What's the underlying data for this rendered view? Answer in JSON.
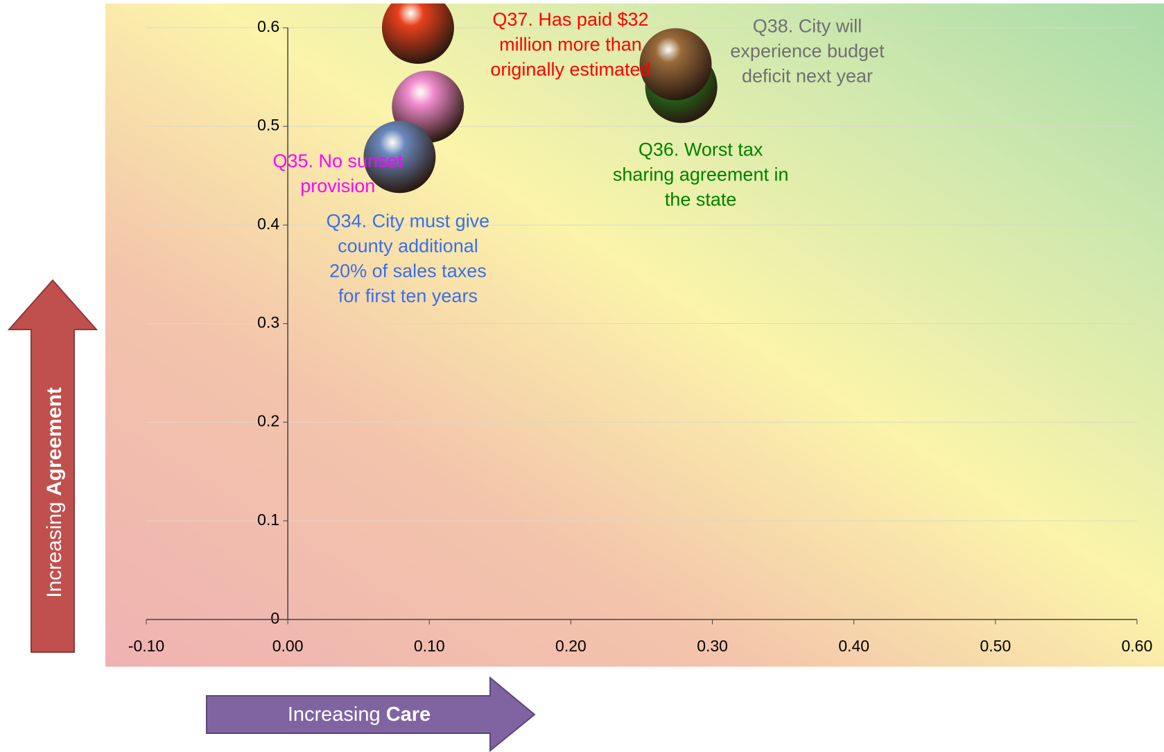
{
  "chart_data": {
    "type": "bubble",
    "xlabel_parts": [
      "Increasing",
      "Care"
    ],
    "ylabel_parts": [
      "Increasing",
      "Agreement"
    ],
    "xlim": [
      -0.1,
      0.6
    ],
    "ylim": [
      0,
      0.6
    ],
    "xticks": [
      {
        "value": -0.1,
        "label": "-0.10"
      },
      {
        "value": 0,
        "label": "0.00"
      },
      {
        "value": 0.1,
        "label": "0.10"
      },
      {
        "value": 0.2,
        "label": "0.20"
      },
      {
        "value": 0.3,
        "label": "0.30"
      },
      {
        "value": 0.4,
        "label": "0.40"
      },
      {
        "value": 0.5,
        "label": "0.50"
      },
      {
        "value": 0.6,
        "label": "0.60"
      }
    ],
    "yticks": [
      0,
      0.1,
      0.2,
      0.3,
      0.4,
      0.5,
      0.6
    ],
    "grid": true,
    "series": [
      {
        "label": [
          "Q37. Has paid $32",
          "million more than",
          "originally estimated"
        ],
        "color": "#e8401a",
        "label_color": "#ff0000",
        "x": [
          0.092
        ],
        "values": [
          0.6
        ]
      },
      {
        "label": [
          "Q35. No sunset",
          "provision"
        ],
        "color": "#f28ccf",
        "label_color": "#ff00ff",
        "x": [
          0.099
        ],
        "values": [
          0.52
        ]
      },
      {
        "label": [
          "Q34. City must give",
          "county additional",
          "20% of sales taxes",
          "for first ten years"
        ],
        "color": "#6a88bd",
        "label_color": "#3a6fe6",
        "x": [
          0.079
        ],
        "values": [
          0.469
        ]
      },
      {
        "label": [
          "Q36. Worst tax",
          "sharing agreement in",
          "the state"
        ],
        "color": "#1e8a1e",
        "label_color": "#008000",
        "x": [
          0.278
        ],
        "values": [
          0.54
        ]
      },
      {
        "label": [
          "Q38. City will",
          "experience budget",
          "deficit next year"
        ],
        "color": "#9a6a3a",
        "label_color": "#707070",
        "x": [
          0.274
        ],
        "values": [
          0.563
        ]
      }
    ]
  }
}
